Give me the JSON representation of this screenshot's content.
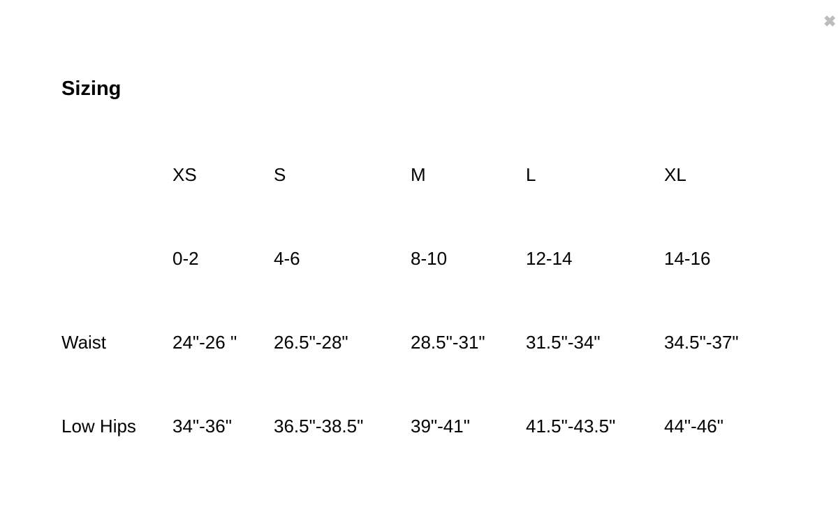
{
  "close_icon": "close-icon",
  "title": "Sizing",
  "table": {
    "header": [
      "",
      "XS",
      "S",
      "M",
      "L",
      "XL"
    ],
    "rows": [
      [
        "",
        "0-2",
        "4-6",
        "8-10",
        "12-14",
        "14-16"
      ],
      [
        "Waist",
        "24\"-26 \"",
        "26.5\"-28\"",
        "28.5\"-31\"",
        "31.5\"-34\"",
        "34.5\"-37\""
      ],
      [
        "Low Hips",
        "34\"-36\"",
        "36.5\"-38.5\"",
        "39\"-41\"",
        "41.5\"-43.5\"",
        "44\"-46\""
      ]
    ]
  }
}
